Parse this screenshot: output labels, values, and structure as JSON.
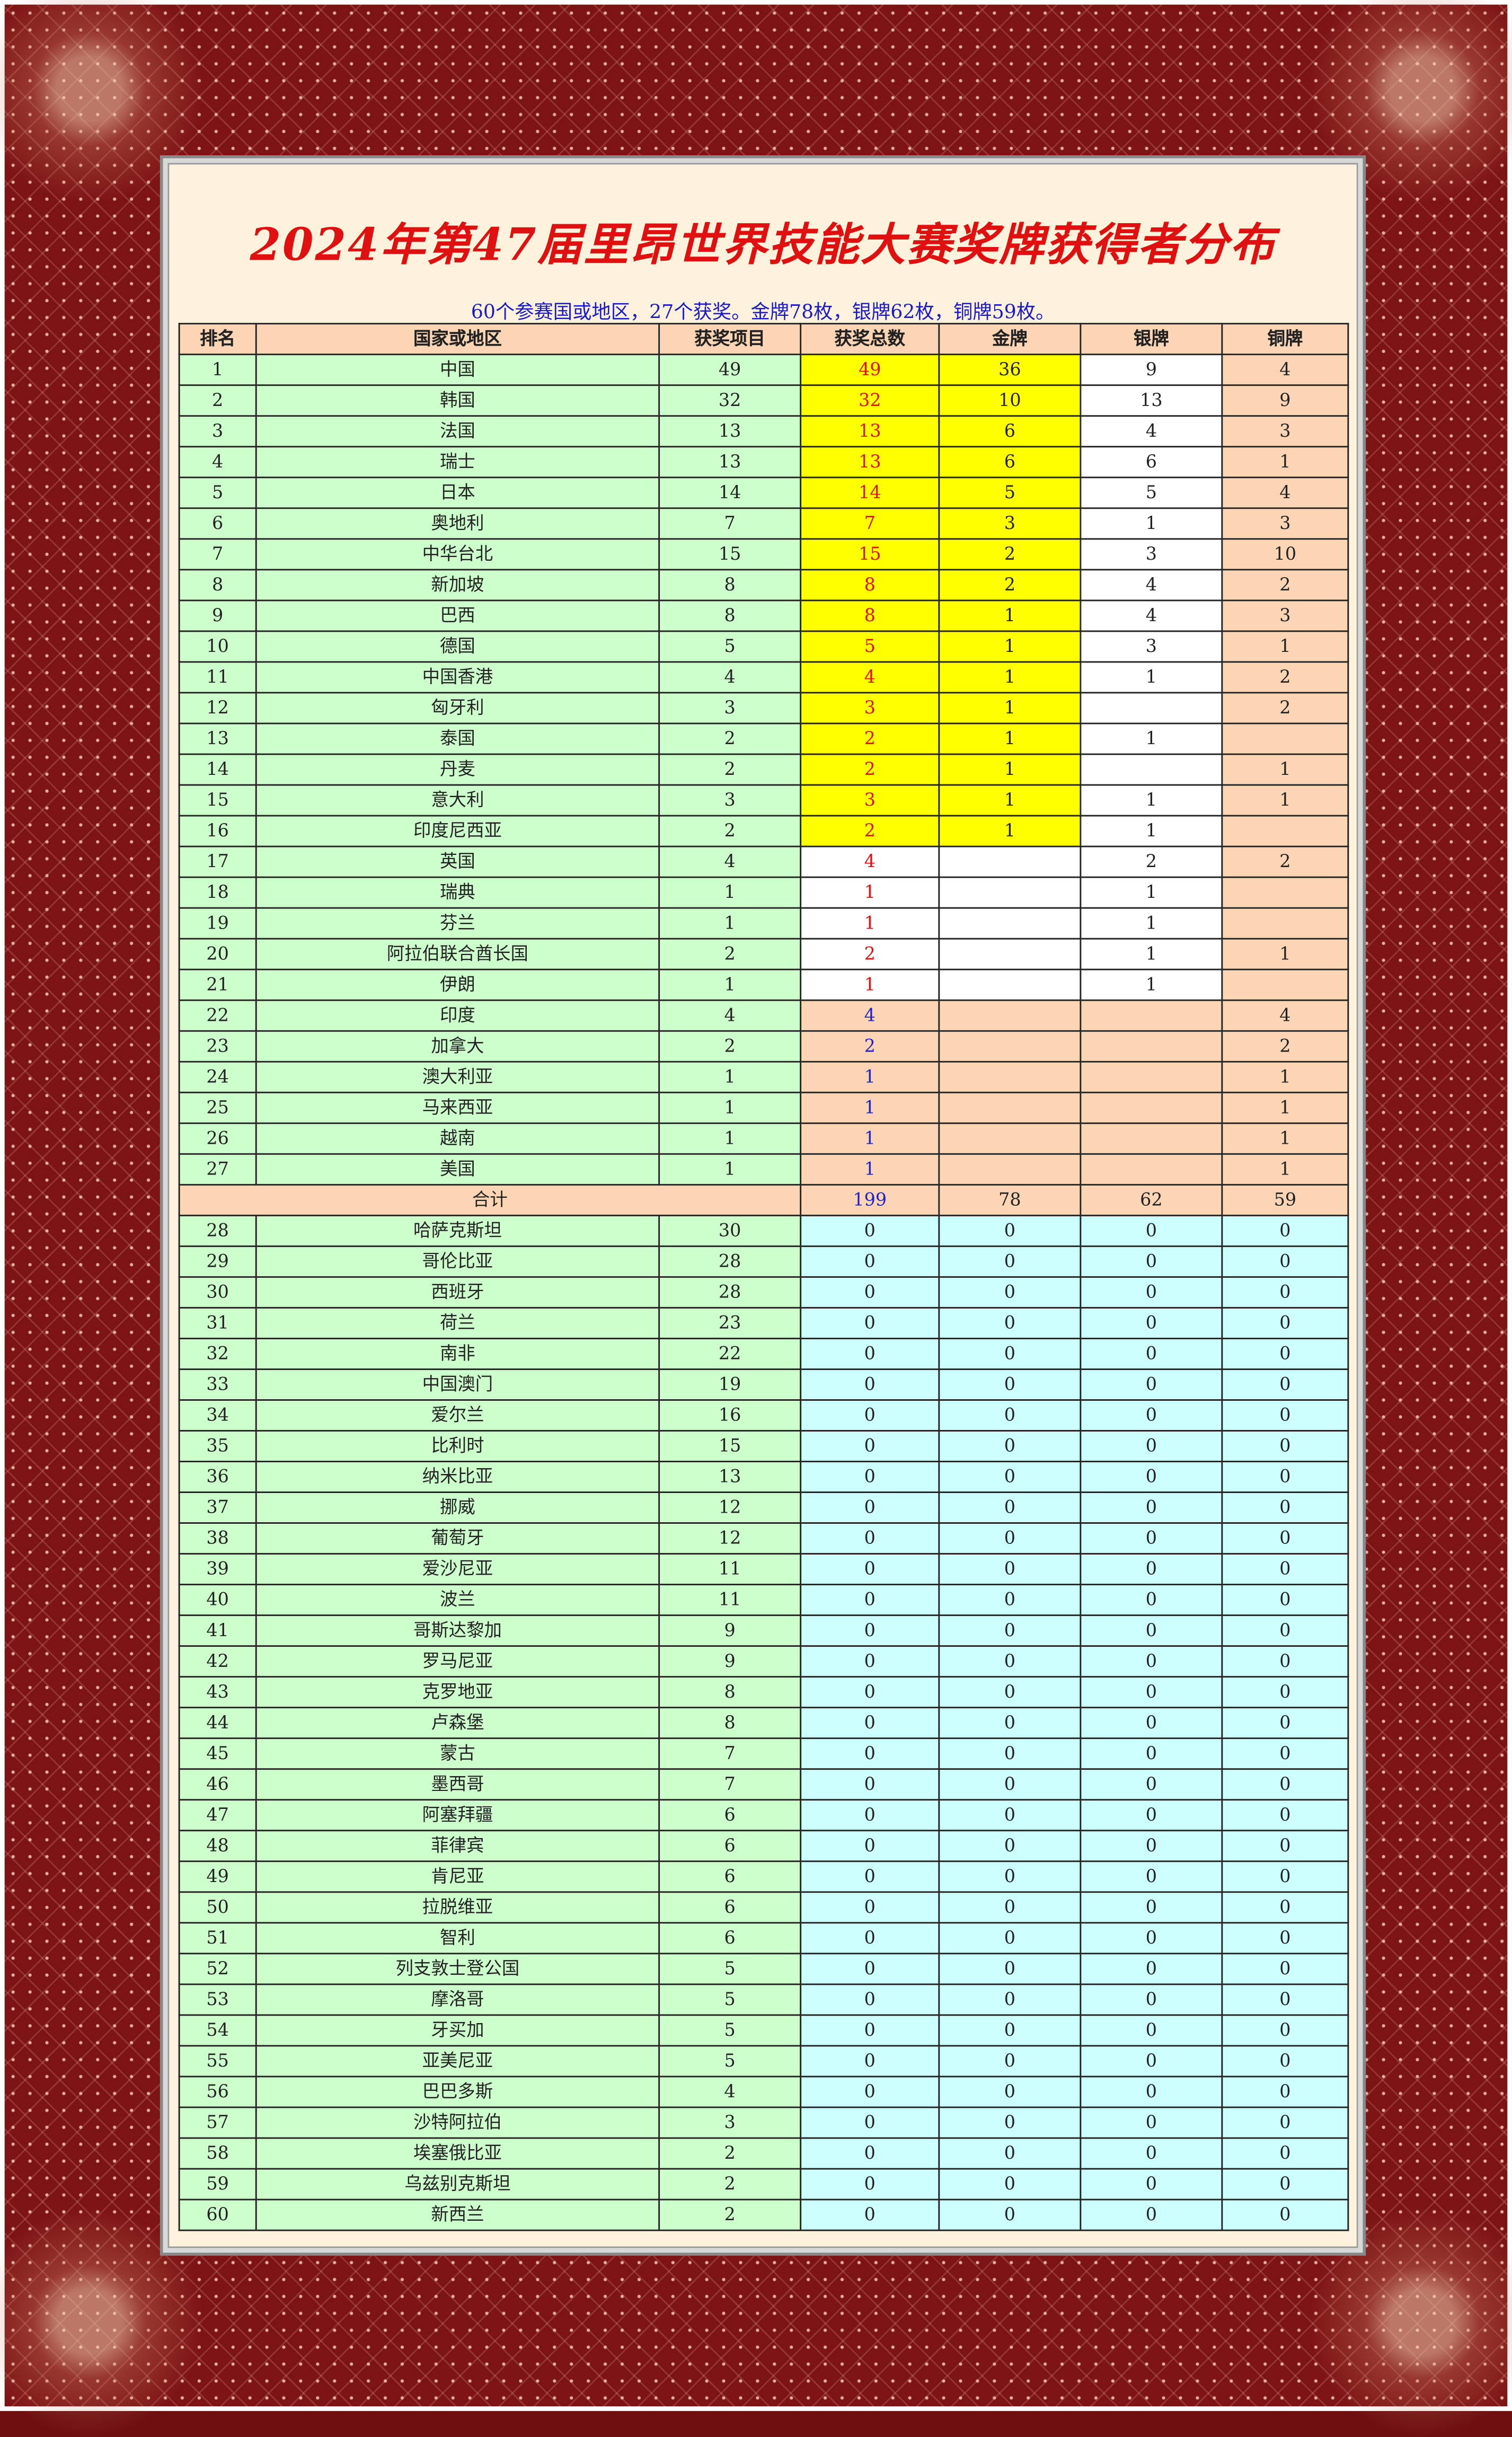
{
  "title": "2024年第47届里昂世界技能大赛奖牌获得者分布",
  "subtitle": "60个参赛国或地区，27个获奖。金牌78枚，银牌62枚，铜牌59枚。",
  "table": {
    "header": [
      "排名",
      "国家或地区",
      "获奖项目",
      "获奖总数",
      "金牌",
      "银牌",
      "铜牌"
    ],
    "rows_awarded": [
      [
        1,
        "中国",
        49,
        49,
        36,
        9,
        4
      ],
      [
        2,
        "韩国",
        32,
        32,
        10,
        13,
        9
      ],
      [
        3,
        "法国",
        13,
        13,
        6,
        4,
        3
      ],
      [
        4,
        "瑞士",
        13,
        13,
        6,
        6,
        1
      ],
      [
        5,
        "日本",
        14,
        14,
        5,
        5,
        4
      ],
      [
        6,
        "奥地利",
        7,
        7,
        3,
        1,
        3
      ],
      [
        7,
        "中华台北",
        15,
        15,
        2,
        3,
        10
      ],
      [
        8,
        "新加坡",
        8,
        8,
        2,
        4,
        2
      ],
      [
        9,
        "巴西",
        8,
        8,
        1,
        4,
        3
      ],
      [
        10,
        "德国",
        5,
        5,
        1,
        3,
        1
      ],
      [
        11,
        "中国香港",
        4,
        4,
        1,
        1,
        2
      ],
      [
        12,
        "匈牙利",
        3,
        3,
        1,
        null,
        2
      ],
      [
        13,
        "泰国",
        2,
        2,
        1,
        1,
        null
      ],
      [
        14,
        "丹麦",
        2,
        2,
        1,
        null,
        1
      ],
      [
        15,
        "意大利",
        3,
        3,
        1,
        1,
        1
      ],
      [
        16,
        "印度尼西亚",
        2,
        2,
        1,
        1,
        null
      ],
      [
        17,
        "英国",
        4,
        4,
        null,
        2,
        2
      ],
      [
        18,
        "瑞典",
        1,
        1,
        null,
        1,
        null
      ],
      [
        19,
        "芬兰",
        1,
        1,
        null,
        1,
        null
      ],
      [
        20,
        "阿拉伯联合酋长国",
        2,
        2,
        null,
        1,
        1
      ],
      [
        21,
        "伊朗",
        1,
        1,
        null,
        1,
        null
      ],
      [
        22,
        "印度",
        4,
        4,
        null,
        null,
        4
      ],
      [
        23,
        "加拿大",
        2,
        2,
        null,
        null,
        2
      ],
      [
        24,
        "澳大利亚",
        1,
        1,
        null,
        null,
        1
      ],
      [
        25,
        "马来西亚",
        1,
        1,
        null,
        null,
        1
      ],
      [
        26,
        "越南",
        1,
        1,
        null,
        null,
        1
      ],
      [
        27,
        "美国",
        1,
        1,
        null,
        null,
        1
      ]
    ],
    "total": {
      "label": "合计",
      "values": [
        199,
        78,
        62,
        59
      ]
    },
    "rows_other": [
      [
        28,
        "哈萨克斯坦",
        30,
        0,
        0,
        0,
        0
      ],
      [
        29,
        "哥伦比亚",
        28,
        0,
        0,
        0,
        0
      ],
      [
        30,
        "西班牙",
        28,
        0,
        0,
        0,
        0
      ],
      [
        31,
        "荷兰",
        23,
        0,
        0,
        0,
        0
      ],
      [
        32,
        "南非",
        22,
        0,
        0,
        0,
        0
      ],
      [
        33,
        "中国澳门",
        19,
        0,
        0,
        0,
        0
      ],
      [
        34,
        "爱尔兰",
        16,
        0,
        0,
        0,
        0
      ],
      [
        35,
        "比利时",
        15,
        0,
        0,
        0,
        0
      ],
      [
        36,
        "纳米比亚",
        13,
        0,
        0,
        0,
        0
      ],
      [
        37,
        "挪威",
        12,
        0,
        0,
        0,
        0
      ],
      [
        38,
        "葡萄牙",
        12,
        0,
        0,
        0,
        0
      ],
      [
        39,
        "爱沙尼亚",
        11,
        0,
        0,
        0,
        0
      ],
      [
        40,
        "波兰",
        11,
        0,
        0,
        0,
        0
      ],
      [
        41,
        "哥斯达黎加",
        9,
        0,
        0,
        0,
        0
      ],
      [
        42,
        "罗马尼亚",
        9,
        0,
        0,
        0,
        0
      ],
      [
        43,
        "克罗地亚",
        8,
        0,
        0,
        0,
        0
      ],
      [
        44,
        "卢森堡",
        8,
        0,
        0,
        0,
        0
      ],
      [
        45,
        "蒙古",
        7,
        0,
        0,
        0,
        0
      ],
      [
        46,
        "墨西哥",
        7,
        0,
        0,
        0,
        0
      ],
      [
        47,
        "阿塞拜疆",
        6,
        0,
        0,
        0,
        0
      ],
      [
        48,
        "菲律宾",
        6,
        0,
        0,
        0,
        0
      ],
      [
        49,
        "肯尼亚",
        6,
        0,
        0,
        0,
        0
      ],
      [
        50,
        "拉脱维亚",
        6,
        0,
        0,
        0,
        0
      ],
      [
        51,
        "智利",
        6,
        0,
        0,
        0,
        0
      ],
      [
        52,
        "列支敦士登公国",
        5,
        0,
        0,
        0,
        0
      ],
      [
        53,
        "摩洛哥",
        5,
        0,
        0,
        0,
        0
      ],
      [
        54,
        "牙买加",
        5,
        0,
        0,
        0,
        0
      ],
      [
        55,
        "亚美尼亚",
        5,
        0,
        0,
        0,
        0
      ],
      [
        56,
        "巴巴多斯",
        4,
        0,
        0,
        0,
        0
      ],
      [
        57,
        "沙特阿拉伯",
        3,
        0,
        0,
        0,
        0
      ],
      [
        58,
        "埃塞俄比亚",
        2,
        0,
        0,
        0,
        0
      ],
      [
        59,
        "乌兹别克斯坦",
        2,
        0,
        0,
        0,
        0
      ],
      [
        60,
        "新西兰",
        2,
        0,
        0,
        0,
        0
      ]
    ]
  }
}
